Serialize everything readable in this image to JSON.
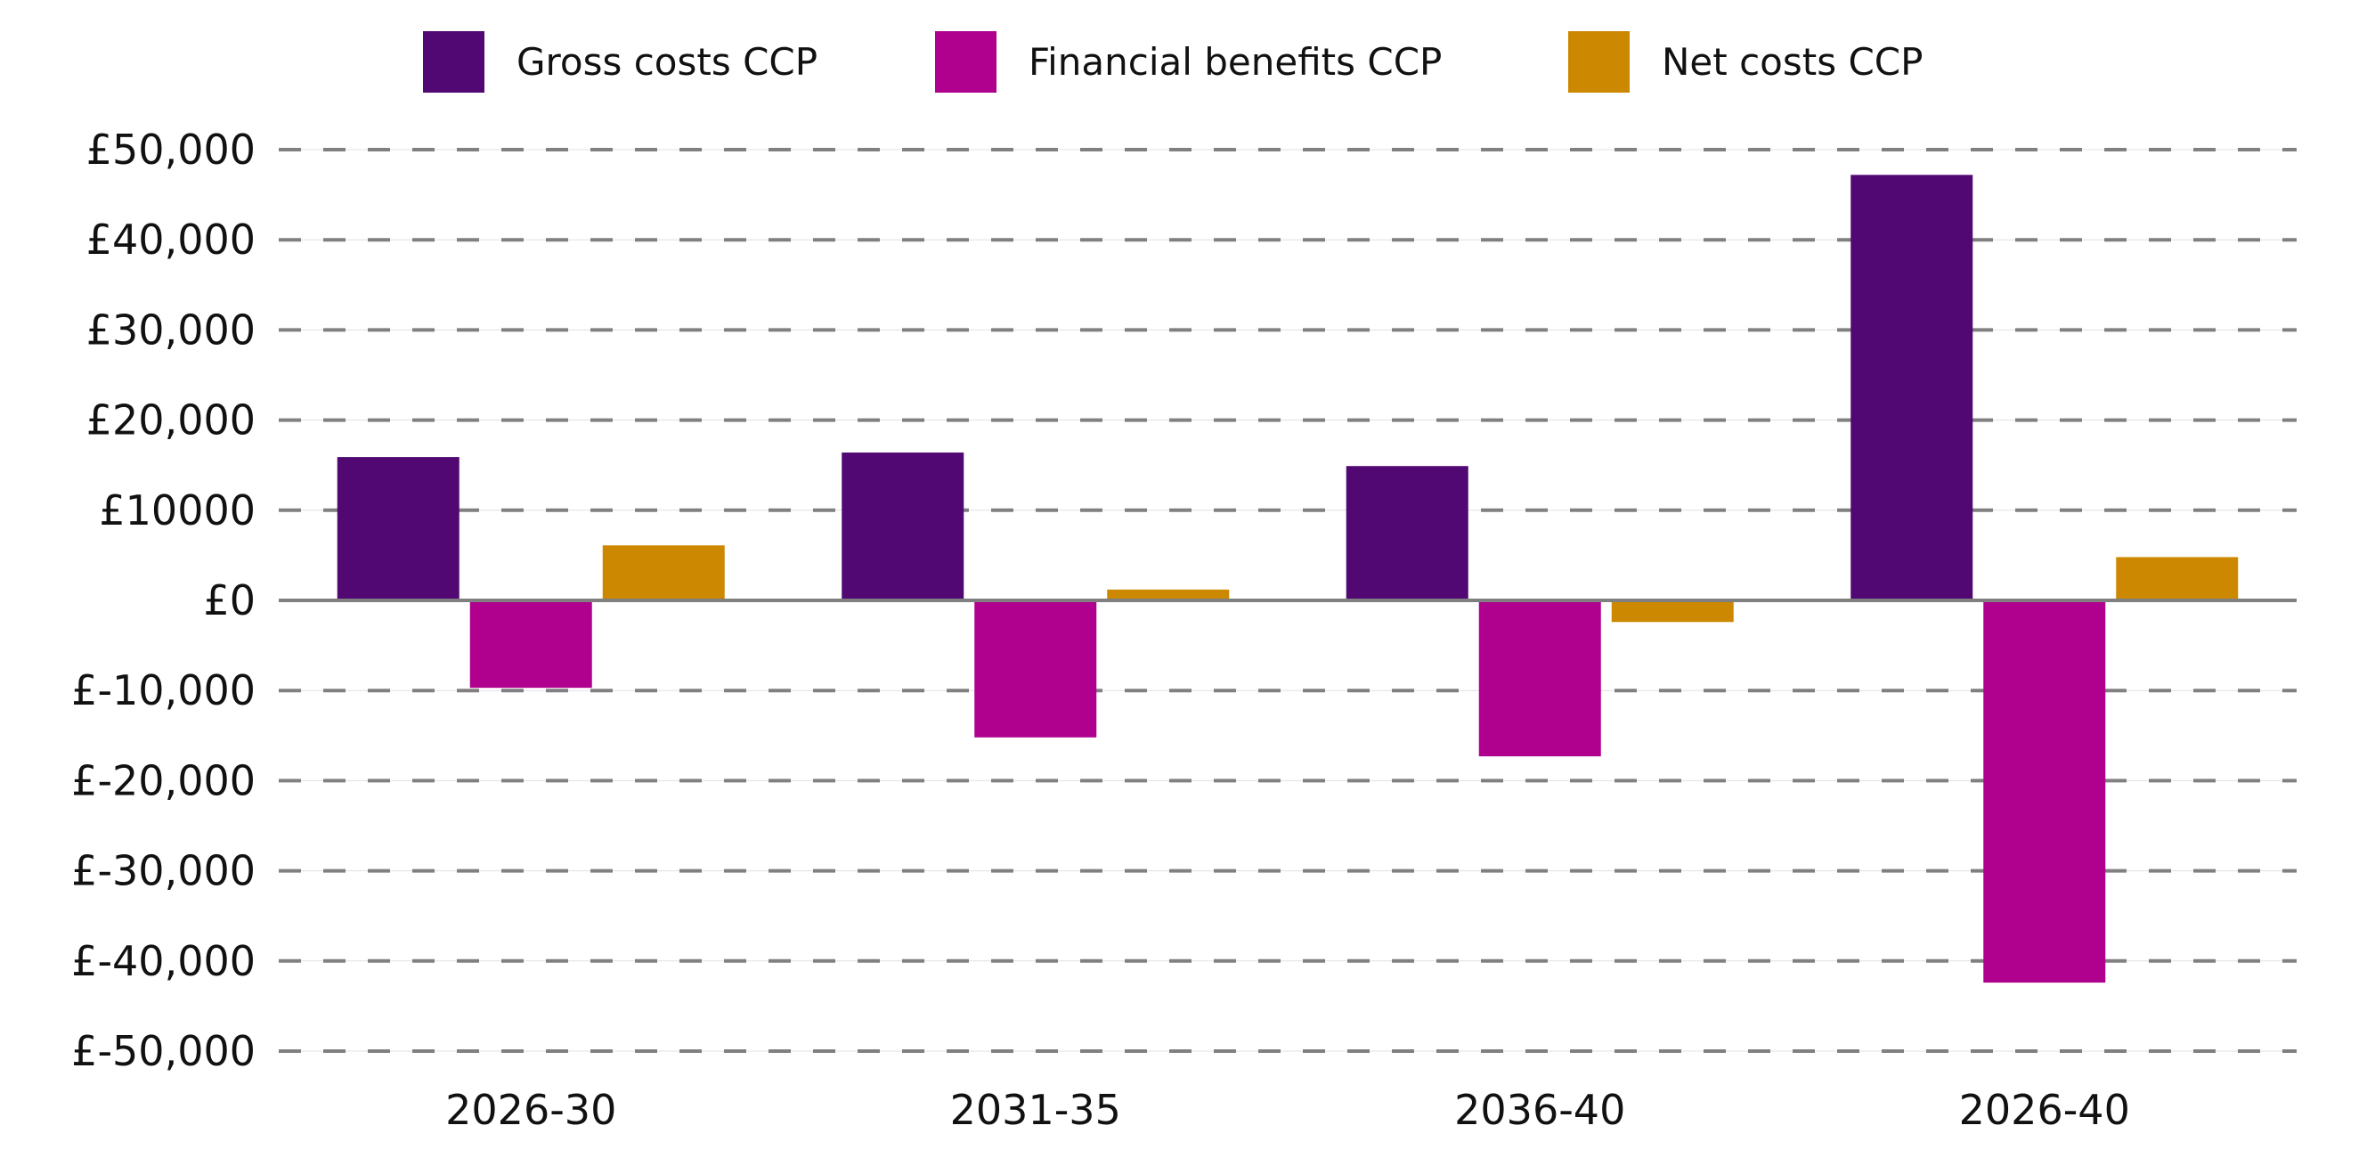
{
  "chart_data": {
    "type": "bar",
    "title": "",
    "xlabel": "",
    "ylabel": "",
    "categories": [
      "2026-30",
      "2031-35",
      "2036-40",
      "2026-40"
    ],
    "series": [
      {
        "name": "Gross costs CCP",
        "color": "#510872",
        "values": [
          15900,
          16400,
          14900,
          47200
        ]
      },
      {
        "name": "Financial benefits CCP",
        "color": "#b0008e",
        "values": [
          -9700,
          -15200,
          -17300,
          -42400
        ]
      },
      {
        "name": "Net costs CCP",
        "color": "#cc8800",
        "values": [
          6100,
          1200,
          -2400,
          4800
        ]
      }
    ],
    "ylim": [
      -50000,
      50000
    ],
    "yticks": [
      50000,
      40000,
      30000,
      20000,
      10000,
      0,
      -10000,
      -20000,
      -30000,
      -40000,
      -50000
    ],
    "ytick_labels": [
      "£50,000",
      "£40,000",
      "£30,000",
      "£20,000",
      "£10000",
      "£0",
      "£-10,000",
      "£-20,000",
      "£-30,000",
      "£-40,000",
      "£-50,000"
    ],
    "grid": true,
    "grid_style": "dashed",
    "legend_position": "top-center"
  }
}
